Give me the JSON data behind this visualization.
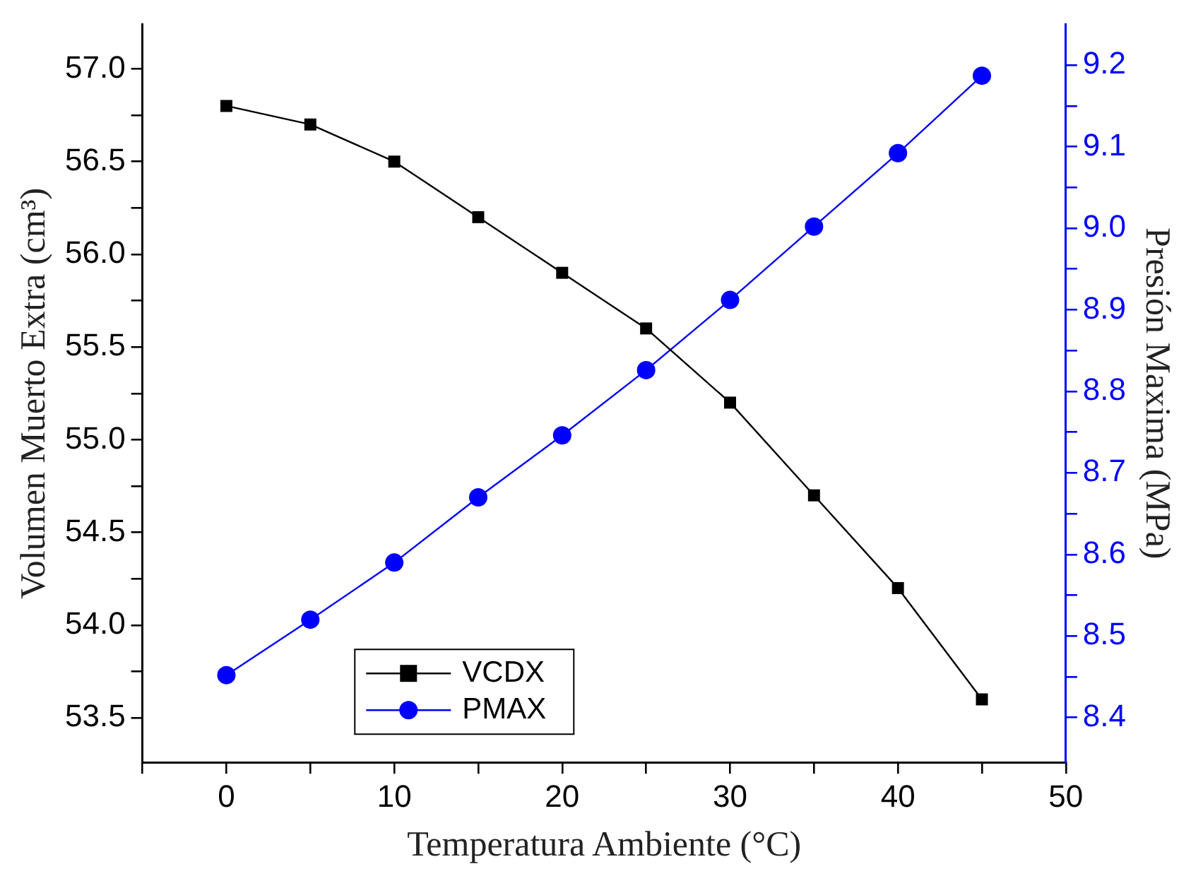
{
  "chart_data": {
    "type": "line",
    "xlabel": "Temperatura Ambiente (°C)",
    "ylabel": "Volumen Muerto Extra (cm³)",
    "y2label": "Presión Maxima (MPa)",
    "x": [
      0,
      5,
      10,
      15,
      20,
      25,
      30,
      35,
      40,
      45
    ],
    "xlim": [
      -5,
      50
    ],
    "xticks": [
      {
        "value": -5,
        "label": null
      },
      0,
      {
        "value": 5,
        "label": null
      },
      10,
      {
        "value": 15,
        "label": null
      },
      20,
      {
        "value": 25,
        "label": null
      },
      30,
      {
        "value": 35,
        "label": null
      },
      40,
      {
        "value": 45,
        "label": null
      },
      50
    ],
    "ylim": [
      53.26,
      57.24
    ],
    "yticks": [
      {
        "value": 53.5,
        "label": "53.5"
      },
      {
        "value": 53.75,
        "label": null
      },
      {
        "value": 54,
        "label": "54.0"
      },
      {
        "value": 54.25,
        "label": null
      },
      {
        "value": 54.5,
        "label": "54.5"
      },
      {
        "value": 54.75,
        "label": null
      },
      {
        "value": 55,
        "label": "55.0"
      },
      {
        "value": 55.25,
        "label": null
      },
      {
        "value": 55.5,
        "label": "55.5"
      },
      {
        "value": 55.75,
        "label": null
      },
      {
        "value": 56,
        "label": "56.0"
      },
      {
        "value": 56.25,
        "label": null
      },
      {
        "value": 56.5,
        "label": "56.5"
      },
      {
        "value": 56.75,
        "label": null
      },
      {
        "value": 57,
        "label": "57.0"
      }
    ],
    "y2lim": [
      8.345,
      9.25
    ],
    "y2ticks": [
      {
        "value": 8.4,
        "label": "8.4"
      },
      {
        "value": 8.45,
        "label": null
      },
      {
        "value": 8.5,
        "label": "8.5"
      },
      {
        "value": 8.55,
        "label": null
      },
      {
        "value": 8.6,
        "label": "8.6"
      },
      {
        "value": 8.65,
        "label": null
      },
      {
        "value": 8.7,
        "label": "8.7"
      },
      {
        "value": 8.75,
        "label": null
      },
      {
        "value": 8.8,
        "label": "8.8"
      },
      {
        "value": 8.85,
        "label": null
      },
      {
        "value": 8.9,
        "label": "8.9"
      },
      {
        "value": 8.95,
        "label": null
      },
      {
        "value": 9,
        "label": "9.0"
      },
      {
        "value": 9.05,
        "label": null
      },
      {
        "value": 9.1,
        "label": "9.1"
      },
      {
        "value": 9.15,
        "label": null
      },
      {
        "value": 9.2,
        "label": "9.2"
      }
    ],
    "series": [
      {
        "name": "VCDX",
        "color": "#000000",
        "marker": "square",
        "values": [
          56.8,
          56.7,
          56.5,
          56.2,
          55.9,
          55.6,
          55.2,
          54.7,
          54.2,
          53.6
        ]
      },
      {
        "name": "PMAX",
        "color": "#0000ff",
        "marker": "circle",
        "axis": "y2",
        "values": [
          8.452,
          8.52,
          8.59,
          8.67,
          8.746,
          8.826,
          8.912,
          9.002,
          9.092,
          9.187
        ]
      }
    ],
    "legend": "bottom left",
    "grid": false,
    "line_style": "solid"
  }
}
